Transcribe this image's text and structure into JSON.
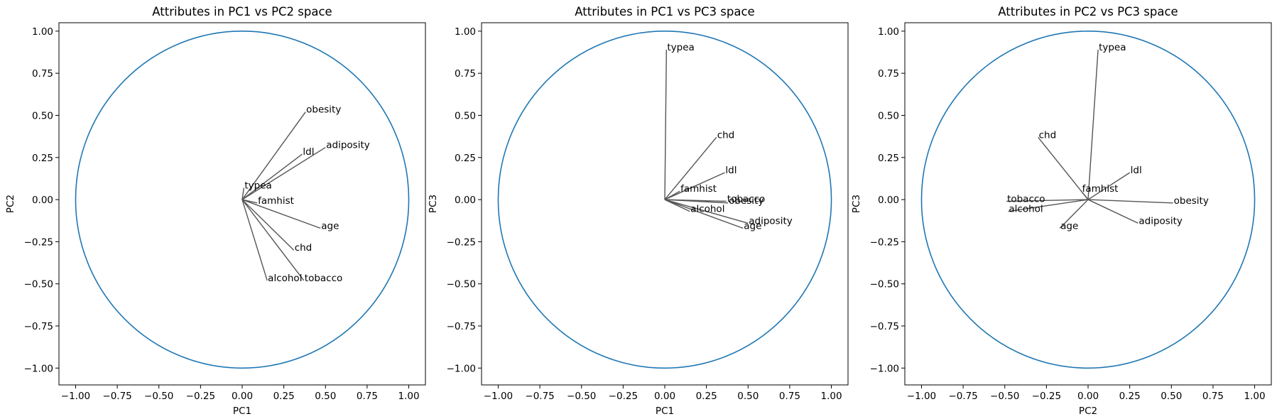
{
  "colors": {
    "circle": "#1f77b4",
    "vector": "#555555"
  },
  "ticks": [
    -1.0,
    -0.75,
    -0.5,
    -0.25,
    0.0,
    0.25,
    0.5,
    0.75,
    1.0
  ],
  "tick_labels": [
    "−1.00",
    "−0.75",
    "−0.50",
    "−0.25",
    "0.00",
    "0.25",
    "0.50",
    "0.75",
    "1.00"
  ],
  "chart_data": [
    {
      "type": "scatter",
      "title": "Attributes in PC1 vs PC2 space",
      "xlabel": "PC1",
      "ylabel": "PC2",
      "xlim": [
        -1.1,
        1.1
      ],
      "ylim": [
        -1.1,
        1.05
      ],
      "grid": false,
      "unit_circle": true,
      "points": [
        {
          "label": "obesity",
          "x": 0.38,
          "y": 0.52
        },
        {
          "label": "ldl",
          "x": 0.36,
          "y": 0.27
        },
        {
          "label": "adiposity",
          "x": 0.5,
          "y": 0.31
        },
        {
          "label": "typea",
          "x": 0.01,
          "y": 0.07
        },
        {
          "label": "famhist",
          "x": 0.09,
          "y": -0.02
        },
        {
          "label": "age",
          "x": 0.47,
          "y": -0.17
        },
        {
          "label": "chd",
          "x": 0.31,
          "y": -0.3
        },
        {
          "label": "alcohol",
          "x": 0.15,
          "y": -0.48
        },
        {
          "label": "tobacco",
          "x": 0.37,
          "y": -0.48
        }
      ]
    },
    {
      "type": "scatter",
      "title": "Attributes in PC1 vs PC3 space",
      "xlabel": "PC1",
      "ylabel": "PC3",
      "xlim": [
        -1.1,
        1.1
      ],
      "ylim": [
        -1.1,
        1.05
      ],
      "grid": false,
      "unit_circle": true,
      "points": [
        {
          "label": "typea",
          "x": 0.01,
          "y": 0.89
        },
        {
          "label": "chd",
          "x": 0.31,
          "y": 0.37
        },
        {
          "label": "ldl",
          "x": 0.36,
          "y": 0.16
        },
        {
          "label": "famhist",
          "x": 0.09,
          "y": 0.05
        },
        {
          "label": "tobacco",
          "x": 0.37,
          "y": -0.01
        },
        {
          "label": "obesity",
          "x": 0.38,
          "y": -0.02
        },
        {
          "label": "alcohol",
          "x": 0.15,
          "y": -0.07
        },
        {
          "label": "adiposity",
          "x": 0.5,
          "y": -0.14
        },
        {
          "label": "age",
          "x": 0.47,
          "y": -0.17
        }
      ]
    },
    {
      "type": "scatter",
      "title": "Attributes in PC2 vs PC3 space",
      "xlabel": "PC2",
      "ylabel": "PC3",
      "xlim": [
        -1.1,
        1.1
      ],
      "ylim": [
        -1.1,
        1.05
      ],
      "grid": false,
      "unit_circle": true,
      "points": [
        {
          "label": "typea",
          "x": 0.06,
          "y": 0.89
        },
        {
          "label": "chd",
          "x": -0.3,
          "y": 0.37
        },
        {
          "label": "ldl",
          "x": 0.25,
          "y": 0.16
        },
        {
          "label": "famhist",
          "x": -0.04,
          "y": 0.05
        },
        {
          "label": "tobacco",
          "x": -0.49,
          "y": -0.01
        },
        {
          "label": "obesity",
          "x": 0.51,
          "y": -0.02
        },
        {
          "label": "alcohol",
          "x": -0.48,
          "y": -0.07
        },
        {
          "label": "adiposity",
          "x": 0.3,
          "y": -0.14
        },
        {
          "label": "age",
          "x": -0.17,
          "y": -0.17
        }
      ]
    }
  ]
}
